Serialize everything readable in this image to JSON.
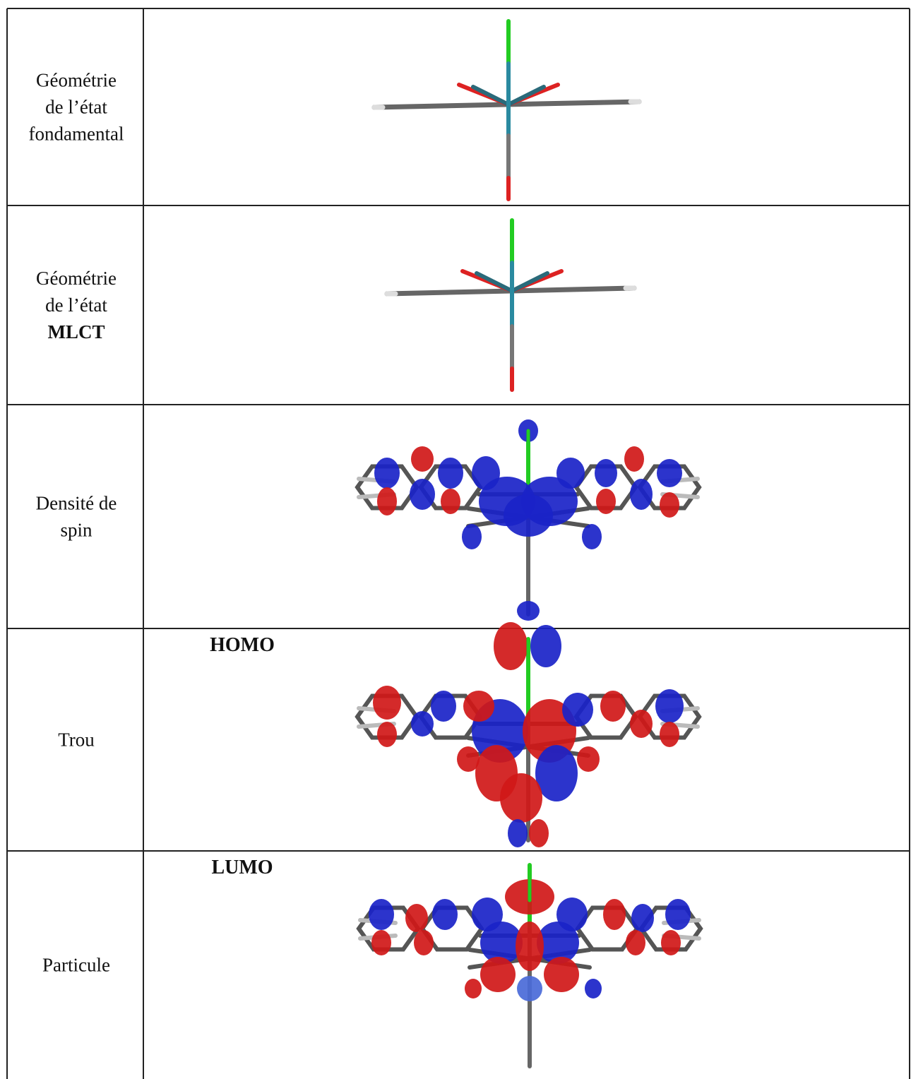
{
  "table": {
    "rows": [
      {
        "label": [
          "Géométrie",
          "de l’état",
          "fondamental"
        ]
      },
      {
        "label": [
          "Géométrie",
          "de l’état",
          "MLCT"
        ]
      },
      {
        "label": [
          "Densité de",
          "spin"
        ]
      },
      {
        "label": [
          "Trou"
        ],
        "caption": "HOMO"
      },
      {
        "label": [
          "Particule"
        ],
        "caption": "LUMO"
      }
    ]
  }
}
